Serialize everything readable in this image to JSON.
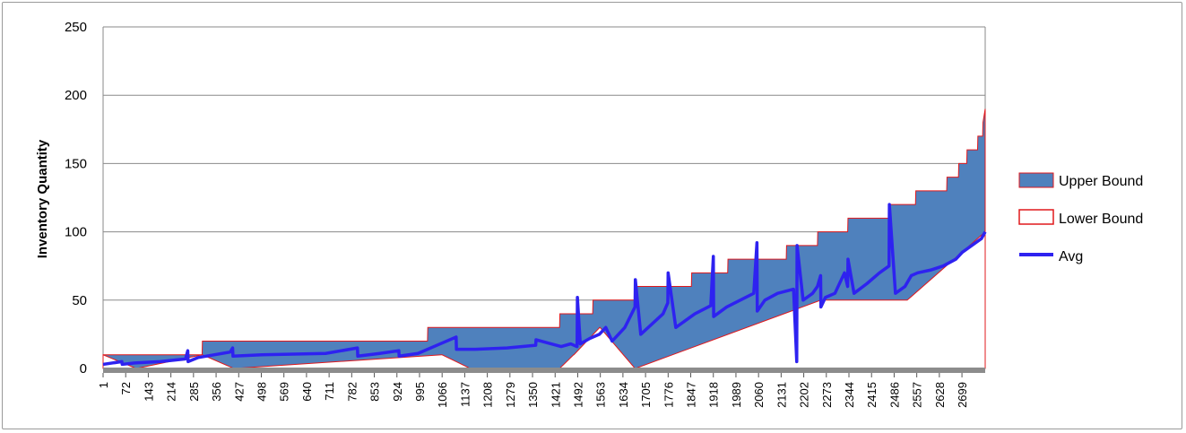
{
  "chart_data": {
    "type": "area",
    "title": "",
    "xlabel": "",
    "ylabel": "Inventory  Quantity",
    "ylim": [
      0,
      250
    ],
    "yticks": [
      0,
      50,
      100,
      150,
      200,
      250
    ],
    "xlim": [
      1,
      2772
    ],
    "xticks": [
      1,
      72,
      143,
      214,
      285,
      356,
      427,
      498,
      569,
      640,
      711,
      782,
      853,
      924,
      995,
      1066,
      1137,
      1208,
      1279,
      1350,
      1421,
      1492,
      1563,
      1634,
      1705,
      1776,
      1847,
      1918,
      1989,
      2060,
      2131,
      2202,
      2273,
      2344,
      2415,
      2486,
      2557,
      2628,
      2699
    ],
    "grid": true,
    "legend_position": "right",
    "colors": {
      "band_fill": "#4f81bd",
      "band_edge": "#e0181c",
      "avg": "#2e22f0",
      "baseline": "#8c8c8c"
    },
    "series": [
      {
        "name": "Upper Bound",
        "x": [
          1,
          105,
          106,
          312,
          313,
          1020,
          1021,
          1435,
          1436,
          1539,
          1540,
          1672,
          1673,
          1849,
          1850,
          1963,
          1964,
          2147,
          2148,
          2245,
          2246,
          2340,
          2341,
          2470,
          2471,
          2553,
          2554,
          2651,
          2652,
          2688,
          2689,
          2714,
          2715,
          2748,
          2749,
          2764,
          2765,
          2772
        ],
        "values": [
          10,
          10,
          10,
          10,
          20,
          20,
          30,
          30,
          40,
          40,
          50,
          50,
          60,
          60,
          70,
          70,
          80,
          80,
          90,
          90,
          100,
          100,
          110,
          110,
          120,
          120,
          130,
          130,
          140,
          140,
          150,
          150,
          160,
          160,
          170,
          170,
          180,
          190
        ]
      },
      {
        "name": "Lower Bound",
        "x": [
          1,
          105,
          106,
          312,
          313,
          412,
          413,
          1065,
          1066,
          1154,
          1155,
          1434,
          1435,
          1479,
          1480,
          1561,
          1562,
          1672,
          1673,
          2256,
          2257,
          2526,
          2527,
          2772
        ],
        "values": [
          10,
          0,
          0,
          10,
          10,
          0,
          0,
          10,
          10,
          0,
          0,
          0,
          0,
          10,
          10,
          30,
          30,
          0,
          0,
          50,
          50,
          50,
          50,
          100
        ]
      },
      {
        "name": "Avg",
        "x": [
          1,
          60,
          61,
          100,
          180,
          260,
          267,
          268,
          300,
          400,
          408,
          409,
          500,
          700,
          800,
          801,
          870,
          930,
          931,
          990,
          1000,
          1060,
          1110,
          1111,
          1170,
          1270,
          1360,
          1361,
          1440,
          1470,
          1490,
          1491,
          1500,
          1530,
          1560,
          1580,
          1600,
          1640,
          1672,
          1673,
          1690,
          1760,
          1775,
          1776,
          1800,
          1860,
          1910,
          1918,
          1919,
          1960,
          2045,
          2055,
          2056,
          2080,
          2120,
          2170,
          2180,
          2181,
          2200,
          2230,
          2245,
          2255,
          2256,
          2270,
          2300,
          2330,
          2340,
          2341,
          2360,
          2400,
          2440,
          2470,
          2471,
          2490,
          2520,
          2540,
          2560,
          2600,
          2640,
          2680,
          2700,
          2730,
          2760,
          2772
        ],
        "values": [
          3,
          5,
          3,
          4,
          5,
          7,
          13,
          5,
          8,
          12,
          15,
          9,
          10,
          11,
          15,
          9,
          11,
          13,
          9,
          11,
          12,
          18,
          23,
          14,
          14,
          15,
          17,
          21,
          16,
          18,
          16,
          52,
          18,
          22,
          25,
          30,
          20,
          30,
          45,
          65,
          25,
          40,
          48,
          70,
          30,
          40,
          46,
          82,
          38,
          45,
          55,
          92,
          42,
          50,
          55,
          58,
          5,
          90,
          50,
          55,
          60,
          68,
          45,
          52,
          55,
          70,
          60,
          80,
          55,
          62,
          70,
          75,
          120,
          55,
          60,
          68,
          70,
          72,
          75,
          80,
          85,
          90,
          95,
          100
        ]
      }
    ]
  }
}
